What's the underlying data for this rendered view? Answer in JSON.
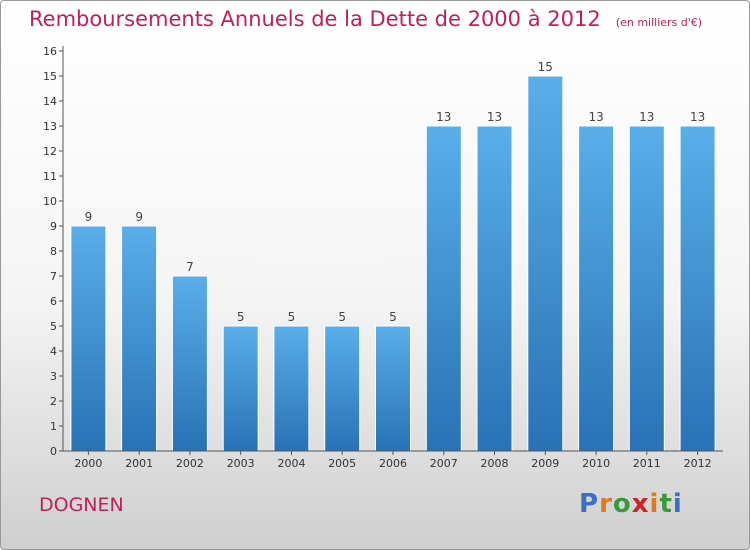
{
  "chart_data": {
    "type": "bar",
    "title": "Remboursements Annuels de la Dette de 2000 à 2012",
    "unit": "(en milliers d'€)",
    "categories": [
      "2000",
      "2001",
      "2002",
      "2003",
      "2004",
      "2005",
      "2006",
      "2007",
      "2008",
      "2009",
      "2010",
      "2011",
      "2012"
    ],
    "values": [
      9,
      9,
      7,
      5,
      5,
      5,
      5,
      13,
      13,
      15,
      13,
      13,
      13
    ],
    "data_labels": [
      "9",
      "9",
      "7",
      "5",
      "5",
      "5",
      "5",
      "13",
      "13",
      "15",
      "13",
      "13",
      "13"
    ],
    "ylim": [
      0,
      16
    ],
    "yticks": [
      "0",
      "1",
      "2",
      "3",
      "4",
      "5",
      "6",
      "7",
      "8",
      "9",
      "10",
      "11",
      "12",
      "13",
      "14",
      "15",
      "16"
    ],
    "grid": false,
    "bar_color": "#4a9fe0"
  },
  "footer": {
    "commune": "DOGNEN",
    "logo": [
      "P",
      "r",
      "o",
      "x",
      "i",
      "t",
      "i"
    ],
    "logo_colors": [
      "#3a6fc4",
      "#e07820",
      "#3a9a3a",
      "#d02020",
      "#e07820",
      "#3a9a3a",
      "#3a6fc4"
    ]
  }
}
